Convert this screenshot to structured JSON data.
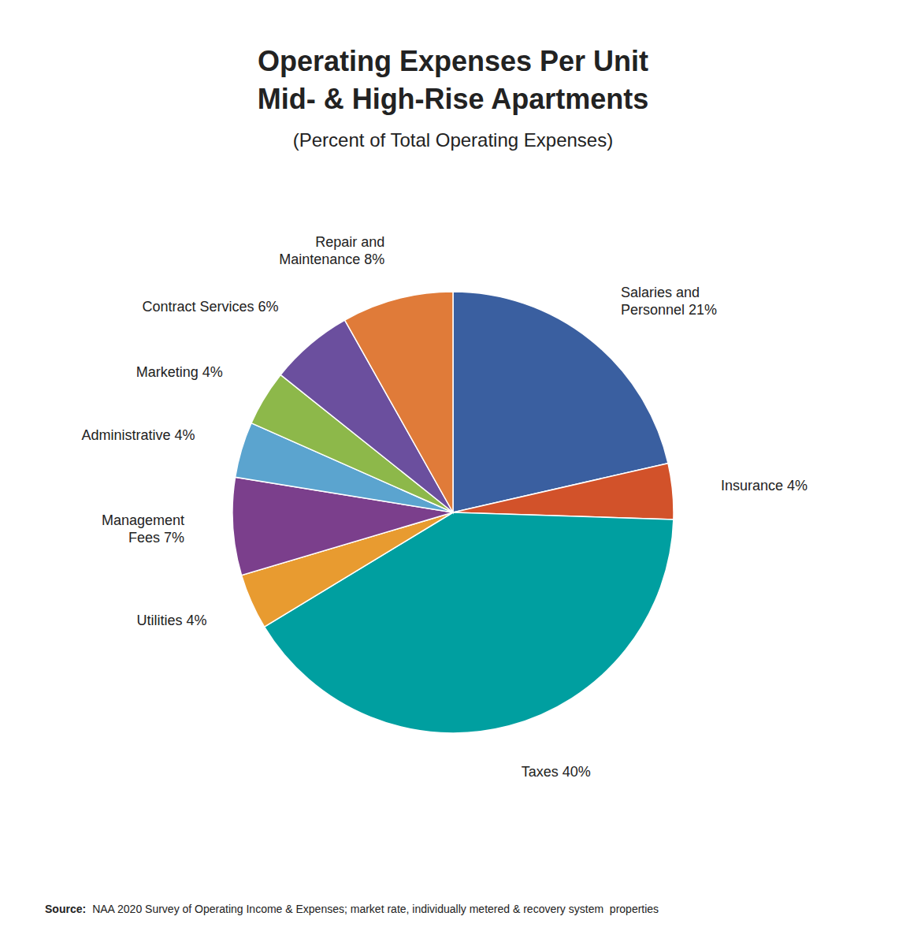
{
  "chart_data": {
    "type": "pie",
    "title": [
      "Operating Expenses Per Unit",
      "Mid- & High-Rise Apartments"
    ],
    "subtitle": "(Percent of Total Operating Expenses)",
    "categories": [
      "Salaries and\nPersonnel 21%",
      "Insurance 4%",
      "Taxes 40%",
      "Utilities 4%",
      "Management\nFees 7%",
      "Administrative 4%",
      "Marketing 4%",
      "Contract Services 6%",
      "Repair and\nMaintenance 8%"
    ],
    "values": [
      21,
      4,
      40,
      4,
      7,
      4,
      4,
      6,
      8
    ],
    "colors": [
      "#3A5FA0",
      "#D2522A",
      "#009FA0",
      "#E89B30",
      "#7B3F8C",
      "#5BA4CF",
      "#8DB84A",
      "#6B4F9E",
      "#E07B39"
    ],
    "annotations": [
      "Source:",
      "NAA 2020 Survey of Operating Income & Expenses; market rate, individually metered & recovery system  properties"
    ]
  }
}
